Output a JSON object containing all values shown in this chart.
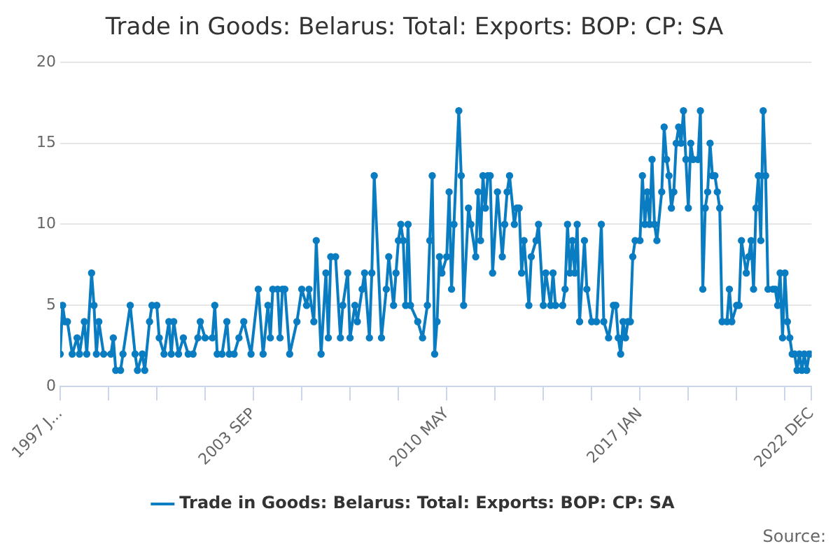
{
  "chart_data": {
    "type": "line",
    "title": "Trade in Goods: Belarus: Total: Exports: BOP: CP: SA",
    "annotations": [
      "Source:"
    ],
    "x": [
      "1997-01",
      "1997-02",
      "1997-03",
      "1997-04",
      "1997-06",
      "1997-08",
      "1997-09",
      "1997-11",
      "1997-12",
      "1998-02",
      "1998-03",
      "1998-04",
      "1998-05",
      "1998-07",
      "1998-10",
      "1998-11",
      "1998-12",
      "1999-02",
      "1999-03",
      "1999-06",
      "1999-08",
      "1999-09",
      "1999-11",
      "1999-12",
      "2000-02",
      "2000-03",
      "2000-05",
      "2000-06",
      "2000-08",
      "2000-10",
      "2000-11",
      "2000-12",
      "2001-02",
      "2001-04",
      "2001-06",
      "2001-08",
      "2001-10",
      "2001-11",
      "2002-01",
      "2002-04",
      "2002-05",
      "2002-06",
      "2002-08",
      "2002-10",
      "2002-11",
      "2003-01",
      "2003-03",
      "2003-05",
      "2003-08",
      "2003-11",
      "2004-01",
      "2004-03",
      "2004-04",
      "2004-05",
      "2004-07",
      "2004-08",
      "2004-09",
      "2004-10",
      "2004-12",
      "2005-03",
      "2005-05",
      "2005-07",
      "2005-08",
      "2005-10",
      "2005-11",
      "2006-01",
      "2006-03",
      "2006-04",
      "2006-05",
      "2006-07",
      "2006-09",
      "2006-10",
      "2006-12",
      "2007-01",
      "2007-03",
      "2007-04",
      "2007-06",
      "2007-07",
      "2007-09",
      "2007-10",
      "2007-11",
      "2008-02",
      "2008-04",
      "2008-05",
      "2008-07",
      "2008-08",
      "2008-09",
      "2008-10",
      "2008-11",
      "2008-12",
      "2009-01",
      "2009-02",
      "2009-05",
      "2009-07",
      "2009-09",
      "2009-10",
      "2009-11",
      "2009-12",
      "2010-01",
      "2010-02",
      "2010-03",
      "2010-05",
      "2010-06",
      "2010-07",
      "2010-08",
      "2010-10",
      "2010-11",
      "2010-12",
      "2011-02",
      "2011-03",
      "2011-05",
      "2011-06",
      "2011-07",
      "2011-08",
      "2011-09",
      "2011-10",
      "2011-11",
      "2011-12",
      "2012-02",
      "2012-04",
      "2012-05",
      "2012-06",
      "2012-07",
      "2012-09",
      "2012-10",
      "2012-11",
      "2012-12",
      "2013-01",
      "2013-03",
      "2013-04",
      "2013-06",
      "2013-07",
      "2013-09",
      "2013-10",
      "2013-12",
      "2014-01",
      "2014-02",
      "2014-05",
      "2014-06",
      "2014-07",
      "2014-08",
      "2014-09",
      "2014-10",
      "2014-11",
      "2014-12",
      "2015-02",
      "2015-03",
      "2015-05",
      "2015-07",
      "2015-09",
      "2015-10",
      "2015-12",
      "2016-02",
      "2016-03",
      "2016-04",
      "2016-05",
      "2016-06",
      "2016-07",
      "2016-08",
      "2016-09",
      "2016-10",
      "2016-11",
      "2017-01",
      "2017-02",
      "2017-03",
      "2017-04",
      "2017-05",
      "2017-06",
      "2017-07",
      "2017-08",
      "2017-10",
      "2017-11",
      "2017-12",
      "2018-01",
      "2018-02",
      "2018-03",
      "2018-04",
      "2018-05",
      "2018-06",
      "2018-07",
      "2018-08",
      "2018-09",
      "2018-10",
      "2018-11",
      "2019-01",
      "2019-02",
      "2019-03",
      "2019-04",
      "2019-05",
      "2019-06",
      "2019-07",
      "2019-08",
      "2019-09",
      "2019-10",
      "2019-11",
      "2020-01",
      "2020-02",
      "2020-03",
      "2020-05",
      "2020-06",
      "2020-07",
      "2020-09",
      "2020-10",
      "2020-11",
      "2020-12",
      "2021-01",
      "2021-02",
      "2021-03",
      "2021-04",
      "2021-05",
      "2021-06",
      "2021-08",
      "2021-09",
      "2021-10",
      "2021-11",
      "2021-12",
      "2022-01",
      "2022-02",
      "2022-03",
      "2022-04",
      "2022-05",
      "2022-06",
      "2022-07",
      "2022-08",
      "2022-09",
      "2022-10",
      "2022-11",
      "2022-12"
    ],
    "series": [
      {
        "name": "Trade in Goods: Belarus: Total: Exports: BOP: CP: SA",
        "color": "#0a7cc1",
        "values": [
          2,
          5,
          4,
          4,
          2,
          3,
          2,
          4,
          2,
          7,
          5,
          2,
          4,
          2,
          2,
          3,
          1,
          1,
          2,
          5,
          2,
          1,
          2,
          1,
          4,
          5,
          5,
          3,
          2,
          4,
          2,
          4,
          2,
          3,
          2,
          2,
          3,
          4,
          3,
          3,
          5,
          2,
          2,
          4,
          2,
          2,
          3,
          4,
          2,
          6,
          2,
          5,
          3,
          6,
          6,
          3,
          6,
          6,
          2,
          4,
          6,
          5,
          6,
          4,
          9,
          2,
          7,
          3,
          8,
          8,
          3,
          5,
          7,
          3,
          5,
          4,
          6,
          7,
          3,
          7,
          13,
          3,
          6,
          8,
          5,
          7,
          9,
          10,
          9,
          5,
          10,
          5,
          4,
          3,
          5,
          9,
          13,
          2,
          4,
          8,
          7,
          8,
          12,
          6,
          10,
          17,
          13,
          5,
          11,
          10,
          8,
          12,
          9,
          13,
          11,
          13,
          13,
          7,
          12,
          8,
          10,
          12,
          13,
          10,
          11,
          11,
          7,
          9,
          5,
          8,
          9,
          10,
          5,
          7,
          5,
          7,
          5,
          5,
          6,
          10,
          7,
          9,
          7,
          10,
          4,
          9,
          6,
          4,
          4,
          10,
          4,
          3,
          5,
          5,
          3,
          2,
          4,
          3,
          4,
          4,
          8,
          9,
          9,
          13,
          10,
          12,
          10,
          14,
          10,
          9,
          12,
          16,
          14,
          13,
          11,
          12,
          15,
          16,
          15,
          17,
          14,
          11,
          15,
          14,
          14,
          17,
          6,
          11,
          12,
          15,
          13,
          13,
          12,
          11,
          4,
          4,
          6,
          4,
          5,
          5,
          9,
          7,
          8,
          9,
          6,
          11,
          13,
          9,
          17,
          13,
          6,
          6,
          6,
          5,
          7,
          3,
          7,
          4,
          3,
          2,
          2,
          1,
          2,
          1,
          2,
          1,
          2,
          2
        ]
      }
    ],
    "xlim": [
      "1997-01",
      "2022-12"
    ],
    "xticks": [
      {
        "value": "1997-01",
        "label": "1997 J..."
      },
      {
        "value": "1998-09",
        "label": null
      },
      {
        "value": "2000-05",
        "label": null
      },
      {
        "value": "2002-01",
        "label": null
      },
      {
        "value": "2003-09",
        "label": "2003 SEP"
      },
      {
        "value": "2005-05",
        "label": null
      },
      {
        "value": "2007-01",
        "label": null
      },
      {
        "value": "2008-09",
        "label": null
      },
      {
        "value": "2010-05",
        "label": "2010 MAY"
      },
      {
        "value": "2012-01",
        "label": null
      },
      {
        "value": "2013-09",
        "label": null
      },
      {
        "value": "2015-05",
        "label": null
      },
      {
        "value": "2017-01",
        "label": "2017 JAN"
      },
      {
        "value": "2018-09",
        "label": null
      },
      {
        "value": "2020-05",
        "label": null
      },
      {
        "value": "2022-01",
        "label": null
      },
      {
        "value": "2022-12",
        "label": "2022 DEC"
      }
    ],
    "ylim": [
      0,
      20
    ],
    "yticks": [
      0,
      5,
      10,
      15,
      20
    ],
    "grid": "y",
    "legend": "bottom",
    "marker": "circle",
    "line_style": "solid"
  }
}
